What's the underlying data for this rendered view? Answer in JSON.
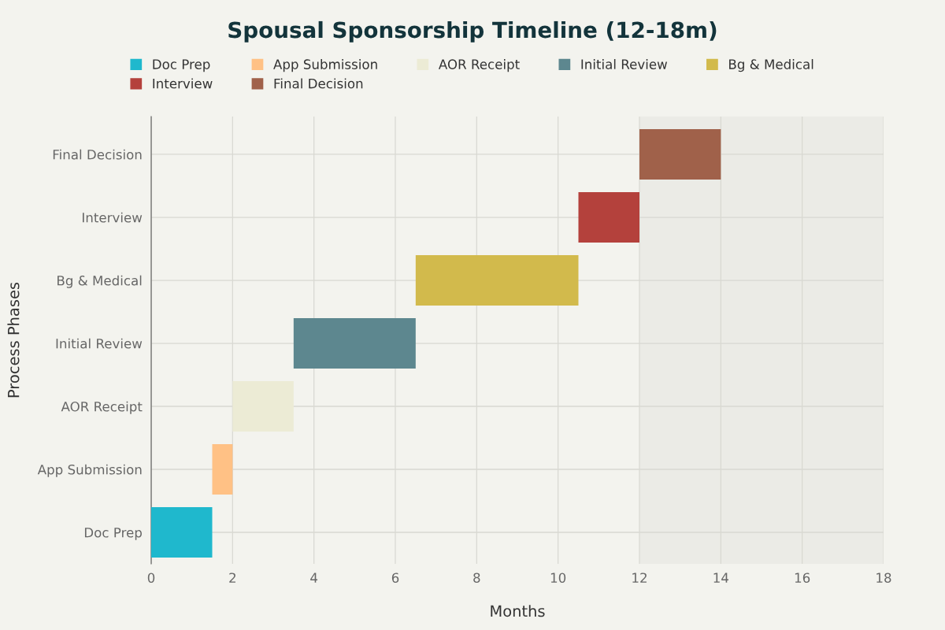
{
  "chart_data": {
    "type": "bar",
    "orientation": "horizontal",
    "title": "Spousal Sponsorship Timeline (12-18m)",
    "xlabel": "Months",
    "ylabel": "Process Phases",
    "categories": [
      "Final Decision",
      "Interview",
      "Bg & Medical",
      "Initial Review",
      "AOR Receipt",
      "App Submission",
      "Doc Prep"
    ],
    "series": [
      {
        "name": "Doc Prep",
        "color": "#1fb8cd",
        "values": [
          null,
          null,
          null,
          null,
          null,
          null,
          1.5
        ],
        "base": [
          null,
          null,
          null,
          null,
          null,
          null,
          0
        ]
      },
      {
        "name": "App Submission",
        "color": "#ffc185",
        "values": [
          null,
          null,
          null,
          null,
          null,
          0.5,
          null
        ],
        "base": [
          null,
          null,
          null,
          null,
          null,
          1.5,
          null
        ]
      },
      {
        "name": "AOR Receipt",
        "color": "#ecebd5",
        "values": [
          null,
          null,
          null,
          null,
          1.5,
          null,
          null
        ],
        "base": [
          null,
          null,
          null,
          null,
          2,
          null,
          null
        ]
      },
      {
        "name": "Initial Review",
        "color": "#5d878f",
        "values": [
          null,
          null,
          null,
          3,
          null,
          null,
          null
        ],
        "base": [
          null,
          null,
          null,
          3.5,
          null,
          null,
          null
        ]
      },
      {
        "name": "Bg & Medical",
        "color": "#d2ba4c",
        "values": [
          null,
          null,
          4,
          null,
          null,
          null,
          null
        ],
        "base": [
          null,
          null,
          6.5,
          null,
          null,
          null,
          null
        ]
      },
      {
        "name": "Interview",
        "color": "#b4413c",
        "values": [
          null,
          1.5,
          null,
          null,
          null,
          null,
          null
        ],
        "base": [
          null,
          10.5,
          null,
          null,
          null,
          null,
          null
        ]
      },
      {
        "name": "Final Decision",
        "color": "#a0614a",
        "values": [
          2,
          null,
          null,
          null,
          null,
          null,
          null
        ],
        "base": [
          12,
          null,
          null,
          null,
          null,
          null,
          null
        ]
      }
    ],
    "bands": [
      {
        "axis": "x",
        "from": 12,
        "to": 18,
        "color": "#ebebe6"
      }
    ],
    "xlim": [
      0,
      18
    ],
    "xticks": [
      0,
      2,
      4,
      6,
      8,
      10,
      12,
      14,
      16,
      18
    ],
    "grid": true,
    "legend": "top"
  }
}
